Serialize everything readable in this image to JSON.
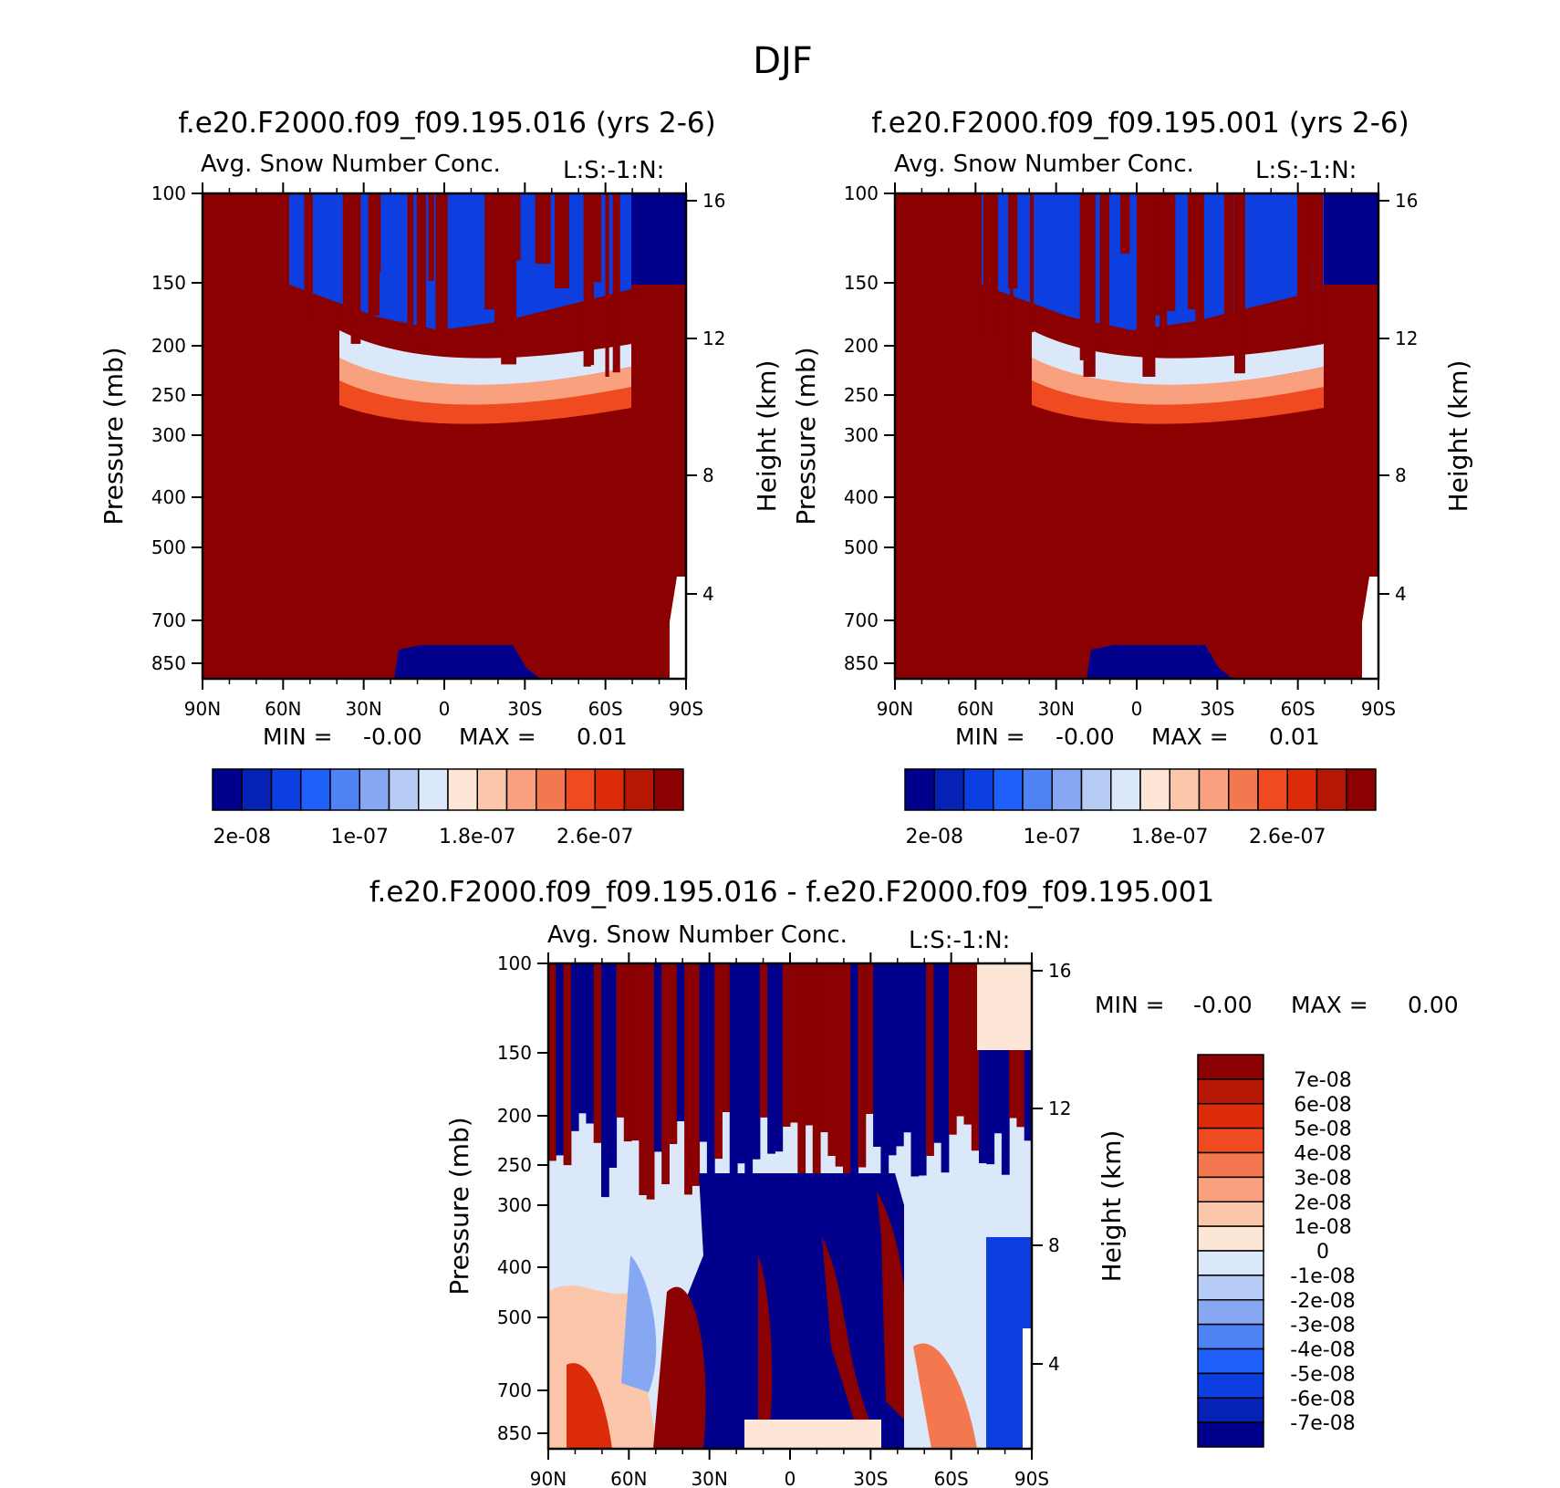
{
  "figure": {
    "title": "DJF",
    "palettes": {
      "absolute": [
        "#00008c",
        "#0522b4",
        "#0d3ee0",
        "#1f5ffa",
        "#4f82f5",
        "#86a8f2",
        "#b7ccf4",
        "#dbe8fa",
        "#fde6d6",
        "#fbc6a9",
        "#f9a17e",
        "#f4784f",
        "#f04a20",
        "#dc2b08",
        "#b41805",
        "#8b0000"
      ],
      "difference": [
        "#00008c",
        "#0522b4",
        "#0d3ee0",
        "#1f5ffa",
        "#4f82f5",
        "#86a8f2",
        "#b7ccf4",
        "#dbe8fa",
        "#fde6d6",
        "#fbc6a9",
        "#f9a17e",
        "#f4784f",
        "#f04a20",
        "#dc2b08",
        "#b41805",
        "#8b0000"
      ]
    }
  },
  "chart_data": [
    {
      "type": "heatmap",
      "title": "f.e20.F2000.f09_f09.195.016 (yrs 2-6)",
      "subtitle": "Avg. Snow Number Conc.",
      "corner_label": "L:S:-1:N:",
      "ylabel": "Pressure (mb)",
      "ylabel_right": "Height (km)",
      "xticks": [
        "90N",
        "60N",
        "30N",
        "0",
        "30S",
        "60S",
        "90S"
      ],
      "yticks": [
        "100",
        "150",
        "200",
        "250",
        "300",
        "400",
        "500",
        "700",
        "850"
      ],
      "ylim": [
        100,
        1000
      ],
      "height_ticks": [
        "16",
        "12",
        "8",
        "4"
      ],
      "min_label": "MIN =",
      "min_value": "-0.00",
      "max_label": "MAX =",
      "max_value": "0.01",
      "colorbar": {
        "orientation": "horizontal",
        "labels": [
          "2e-08",
          "1e-07",
          "1.8e-07",
          "2.6e-07"
        ]
      }
    },
    {
      "type": "heatmap",
      "title": "f.e20.F2000.f09_f09.195.001 (yrs 2-6)",
      "subtitle": "Avg. Snow Number Conc.",
      "corner_label": "L:S:-1:N:",
      "ylabel": "Pressure (mb)",
      "ylabel_right": "Height (km)",
      "xticks": [
        "90N",
        "60N",
        "30N",
        "0",
        "30S",
        "60S",
        "90S"
      ],
      "yticks": [
        "100",
        "150",
        "200",
        "250",
        "300",
        "400",
        "500",
        "700",
        "850"
      ],
      "ylim": [
        100,
        1000
      ],
      "height_ticks": [
        "16",
        "12",
        "8",
        "4"
      ],
      "min_label": "MIN =",
      "min_value": "-0.00",
      "max_label": "MAX =",
      "max_value": "0.01",
      "colorbar": {
        "orientation": "horizontal",
        "labels": [
          "2e-08",
          "1e-07",
          "1.8e-07",
          "2.6e-07"
        ]
      }
    },
    {
      "type": "heatmap",
      "title": "f.e20.F2000.f09_f09.195.016 - f.e20.F2000.f09_f09.195.001",
      "subtitle": "Avg. Snow Number Conc.",
      "corner_label": "L:S:-1:N:",
      "ylabel": "Pressure (mb)",
      "ylabel_right": "Height (km)",
      "xticks": [
        "90N",
        "60N",
        "30N",
        "0",
        "30S",
        "60S",
        "90S"
      ],
      "yticks": [
        "100",
        "150",
        "200",
        "250",
        "300",
        "400",
        "500",
        "700",
        "850"
      ],
      "ylim": [
        100,
        1000
      ],
      "height_ticks": [
        "16",
        "12",
        "8",
        "4"
      ],
      "min_label": "MIN =",
      "min_value": "-0.00",
      "max_label": "MAX =",
      "max_value": "0.00",
      "colorbar": {
        "orientation": "vertical",
        "labels": [
          "7e-08",
          "6e-08",
          "5e-08",
          "4e-08",
          "3e-08",
          "2e-08",
          "1e-08",
          "0",
          "-1e-08",
          "-2e-08",
          "-3e-08",
          "-4e-08",
          "-5e-08",
          "-6e-08",
          "-7e-08"
        ]
      }
    }
  ]
}
